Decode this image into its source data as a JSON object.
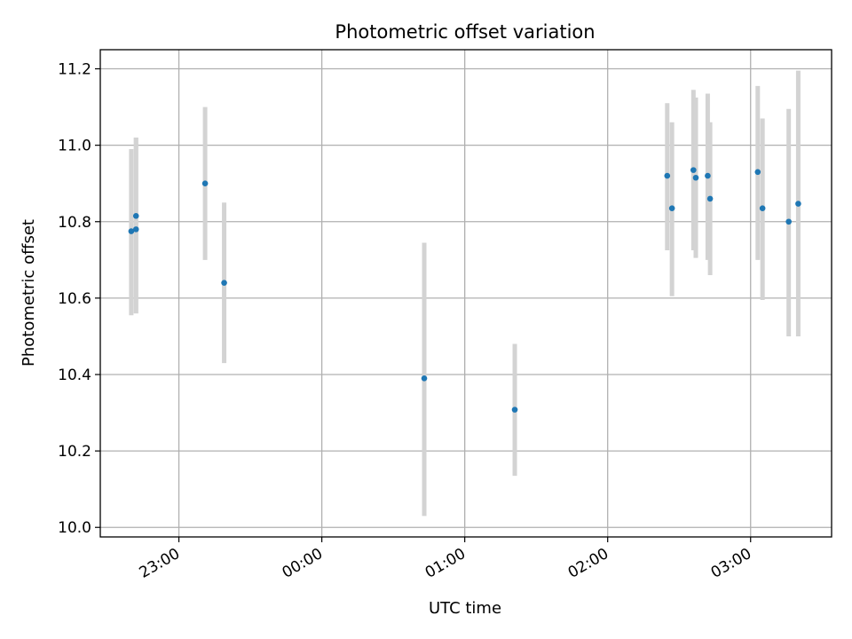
{
  "chart_data": {
    "type": "scatter",
    "title": "Photometric offset variation",
    "xlabel": "UTC time",
    "ylabel": "Photometric offset",
    "xlim": [
      "22:27",
      "03:34"
    ],
    "ylim": [
      9.975,
      11.25
    ],
    "x_ticks": [
      "23:00",
      "00:00",
      "01:00",
      "02:00",
      "03:00"
    ],
    "y_ticks": [
      10.0,
      10.2,
      10.4,
      10.6,
      10.8,
      11.0,
      11.2
    ],
    "grid": true,
    "colors": {
      "points": "#1f77b4",
      "errorbars": "#d3d3d3",
      "grid": "#b0b0b0"
    },
    "series": [
      {
        "points": [
          {
            "t": "22:40",
            "y": 10.775,
            "lo": 10.555,
            "hi": 10.99
          },
          {
            "t": "22:42",
            "y": 10.78,
            "lo": 10.56,
            "hi": 11.02
          },
          {
            "t": "22:42",
            "y": 10.815,
            "lo": 10.56,
            "hi": 11.02
          },
          {
            "t": "23:11",
            "y": 10.9,
            "lo": 10.7,
            "hi": 11.1
          },
          {
            "t": "23:19",
            "y": 10.64,
            "lo": 10.43,
            "hi": 10.85
          },
          {
            "t": "00:43",
            "y": 10.39,
            "lo": 10.03,
            "hi": 10.745
          },
          {
            "t": "01:21",
            "y": 10.308,
            "lo": 10.135,
            "hi": 10.48
          },
          {
            "t": "02:25",
            "y": 10.92,
            "lo": 10.725,
            "hi": 11.11
          },
          {
            "t": "02:27",
            "y": 10.835,
            "lo": 10.605,
            "hi": 11.06
          },
          {
            "t": "02:36",
            "y": 10.935,
            "lo": 10.725,
            "hi": 11.145
          },
          {
            "t": "02:37",
            "y": 10.915,
            "lo": 10.705,
            "hi": 11.125
          },
          {
            "t": "02:42",
            "y": 10.92,
            "lo": 10.7,
            "hi": 11.135
          },
          {
            "t": "02:43",
            "y": 10.86,
            "lo": 10.66,
            "hi": 11.06
          },
          {
            "t": "03:03",
            "y": 10.93,
            "lo": 10.7,
            "hi": 11.155
          },
          {
            "t": "03:05",
            "y": 10.835,
            "lo": 10.595,
            "hi": 11.07
          },
          {
            "t": "03:16",
            "y": 10.8,
            "lo": 10.5,
            "hi": 11.095
          },
          {
            "t": "03:20",
            "y": 10.847,
            "lo": 10.5,
            "hi": 11.195
          }
        ]
      }
    ]
  }
}
